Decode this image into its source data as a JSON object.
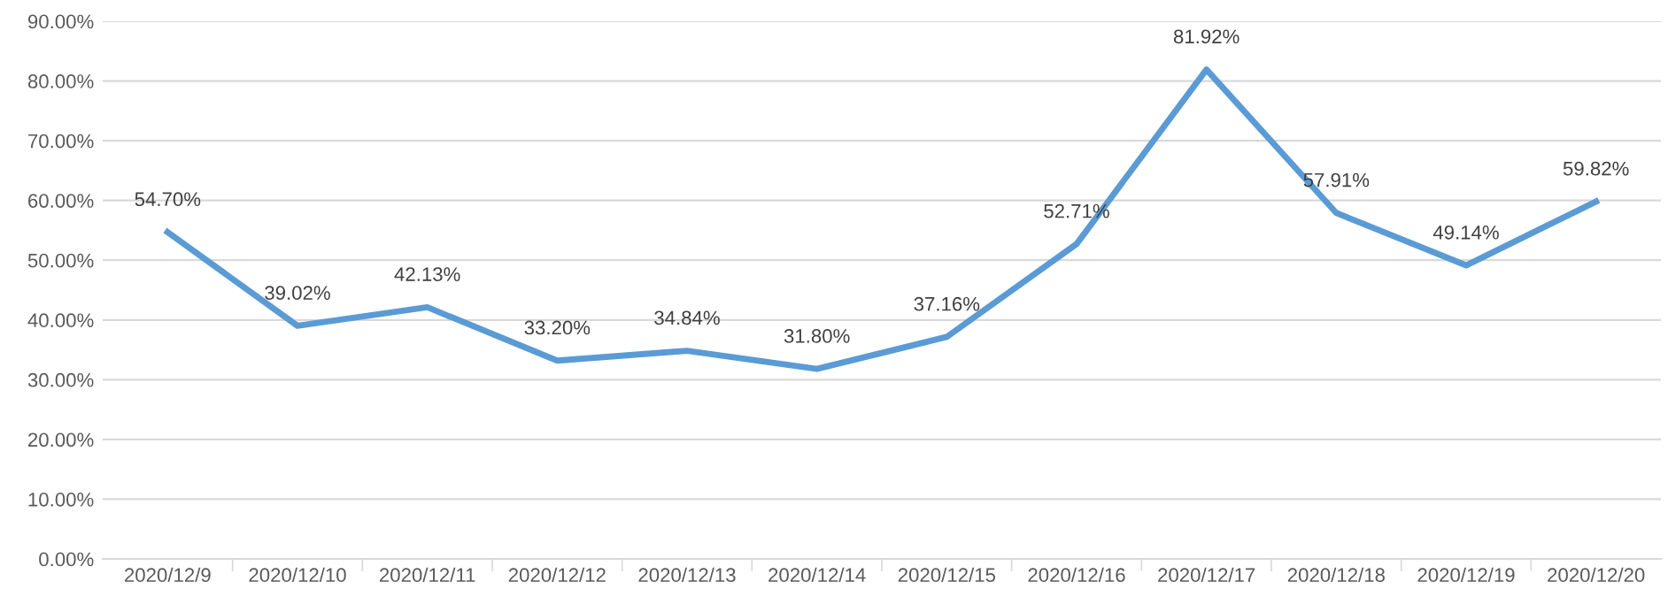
{
  "chart_data": {
    "type": "line",
    "categories": [
      "2020/12/9",
      "2020/12/10",
      "2020/12/11",
      "2020/12/12",
      "2020/12/13",
      "2020/12/14",
      "2020/12/15",
      "2020/12/16",
      "2020/12/17",
      "2020/12/18",
      "2020/12/19",
      "2020/12/20"
    ],
    "series": [
      {
        "color": "#5b9bd5",
        "values": [
          54.7,
          39.02,
          42.13,
          33.2,
          34.84,
          31.8,
          37.16,
          52.71,
          81.92,
          57.91,
          49.14,
          59.82
        ],
        "value_labels": [
          "54.70%",
          "39.02%",
          "42.13%",
          "33.20%",
          "34.84%",
          "31.80%",
          "37.16%",
          "52.71%",
          "81.92%",
          "57.91%",
          "49.14%",
          "59.82%"
        ]
      }
    ],
    "ylim": [
      0,
      90
    ],
    "yticks": [
      {
        "value": 0,
        "label": "0.00%"
      },
      {
        "value": 10,
        "label": "10.00%"
      },
      {
        "value": 20,
        "label": "20.00%"
      },
      {
        "value": 30,
        "label": "30.00%"
      },
      {
        "value": 40,
        "label": "40.00%"
      },
      {
        "value": 50,
        "label": "50.00%"
      },
      {
        "value": 60,
        "label": "60.00%"
      },
      {
        "value": 70,
        "label": "70.00%"
      },
      {
        "value": 80,
        "label": "80.00%"
      },
      {
        "value": 90,
        "label": "90.00%"
      }
    ],
    "grid": "y",
    "legend": false,
    "marker": "none",
    "line_style": "solid"
  }
}
